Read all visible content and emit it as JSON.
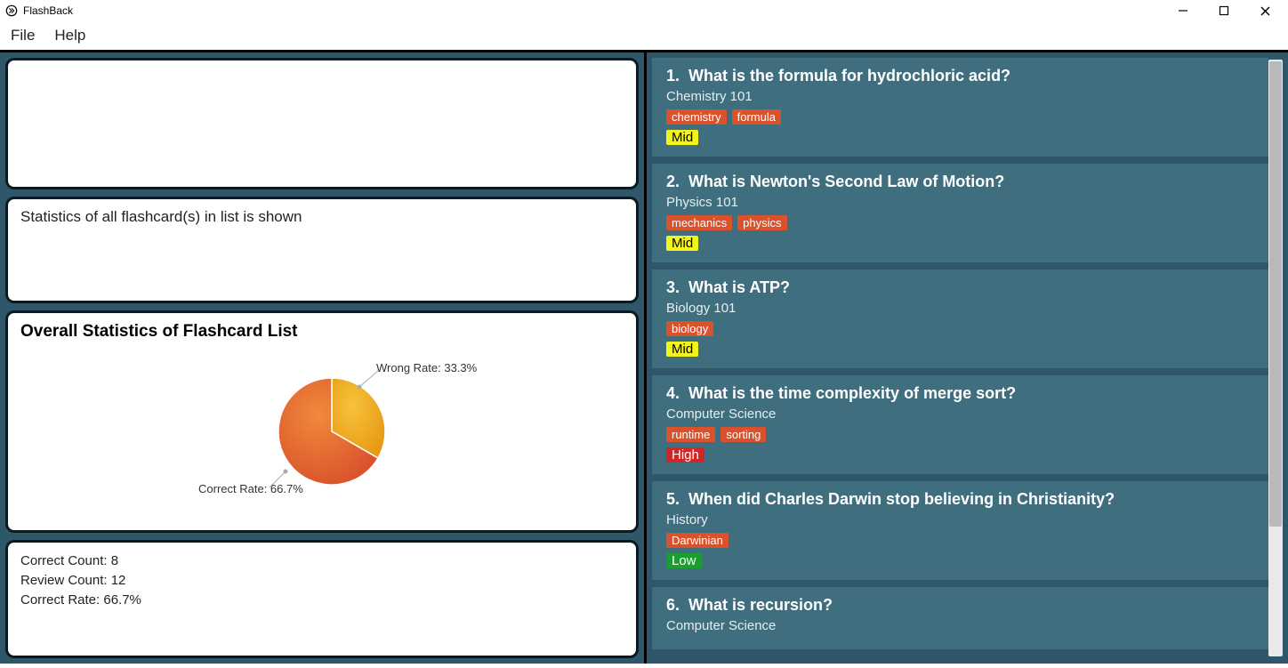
{
  "window": {
    "title": "FlashBack",
    "menus": {
      "file": "File",
      "help": "Help"
    }
  },
  "left": {
    "input_value": "",
    "message": "Statistics of all flashcard(s) in list is shown",
    "stats_title": "Overall Statistics of Flashcard List",
    "pie": {
      "correct_pct": 66.7,
      "wrong_pct": 33.3,
      "correct_label": "Correct Rate: 66.7%",
      "wrong_label": "Wrong Rate: 33.3%",
      "correct_color_start": "#f08a3a",
      "correct_color_end": "#d9522c",
      "wrong_color_start": "#f7c23a",
      "wrong_color_end": "#e79a16",
      "border_color": "#ffffff"
    },
    "counts": {
      "l1": "Correct Count: 8",
      "l2": "Review Count: 12",
      "l3": "Correct Rate: 66.7%"
    }
  },
  "colors": {
    "panel_border": "#0c1a20",
    "main_bg": "#2e5869",
    "card_bg": "#3f6e7f",
    "tag_bg": "#d9522c",
    "prio_mid": "#f4f41a",
    "prio_high": "#d62424",
    "prio_low": "#1a9e2d"
  },
  "cards": [
    {
      "num": "1.",
      "q": "What is the formula for hydrochloric acid?",
      "subject": "Chemistry 101",
      "tags": [
        "chemistry",
        "formula"
      ],
      "priority": "Mid"
    },
    {
      "num": "2.",
      "q": "What is Newton's Second Law of Motion?",
      "subject": "Physics 101",
      "tags": [
        "mechanics",
        "physics"
      ],
      "priority": "Mid"
    },
    {
      "num": "3.",
      "q": "What is ATP?",
      "subject": "Biology 101",
      "tags": [
        "biology"
      ],
      "priority": "Mid"
    },
    {
      "num": "4.",
      "q": "What is the time complexity of merge sort?",
      "subject": "Computer Science",
      "tags": [
        "runtime",
        "sorting"
      ],
      "priority": "High"
    },
    {
      "num": "5.",
      "q": "When did Charles Darwin stop believing in Christianity?",
      "subject": "History",
      "tags": [
        "Darwinian"
      ],
      "priority": "Low"
    },
    {
      "num": "6.",
      "q": "What is recursion?",
      "subject": "Computer Science",
      "tags": [],
      "priority": ""
    }
  ]
}
